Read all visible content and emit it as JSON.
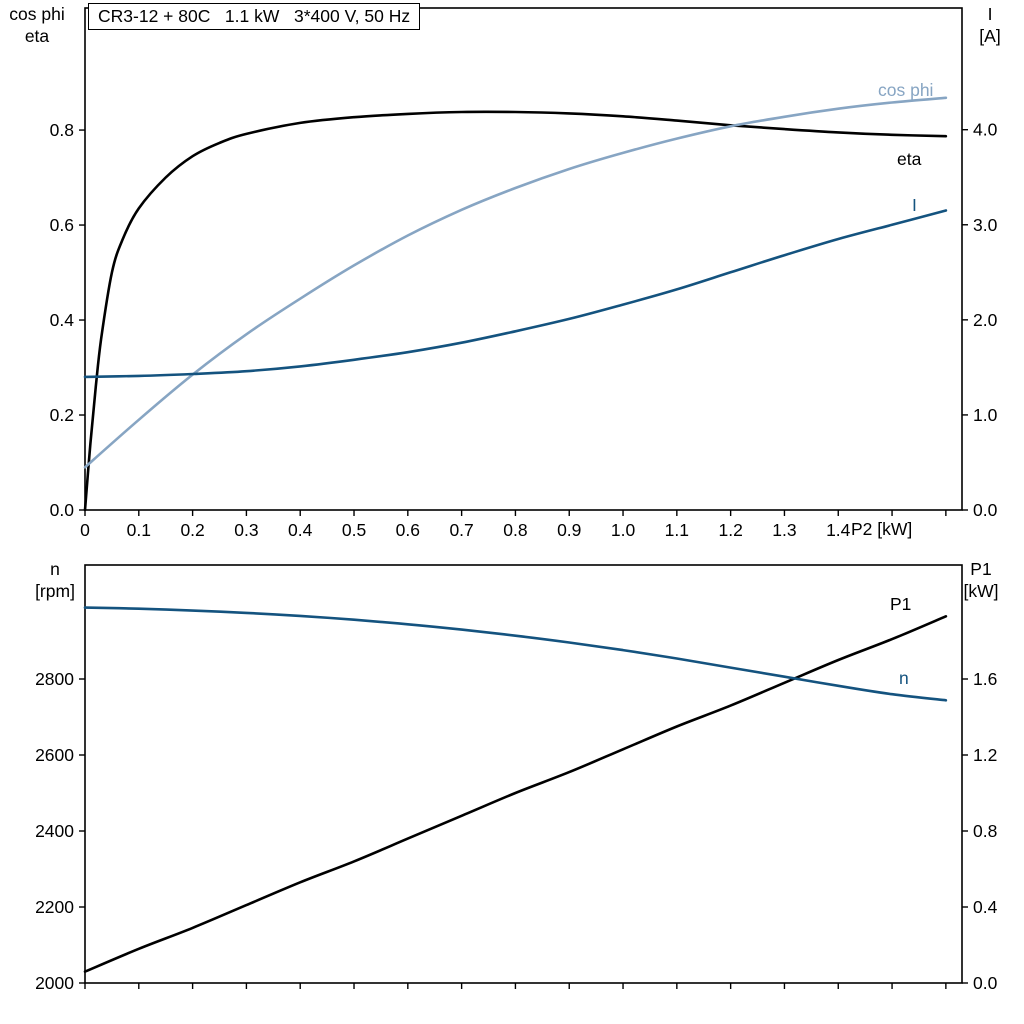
{
  "page": {
    "background": "#ffffff",
    "frame_color": "#000000",
    "color_black_curve": "#000000",
    "color_dark_blue": "#14537f",
    "color_light_blue": "#87a5c3"
  },
  "chart_data": [
    {
      "type": "line",
      "title": "CR3-12 + 80C   1.1 kW   3*400 V, 50 Hz",
      "grid": false,
      "legend_position": "curve-end-labels",
      "x_axis": {
        "label": "P2 [kW]",
        "min": 0,
        "max": 1.63,
        "tick_values": [
          0,
          0.1,
          0.2,
          0.3,
          0.4,
          0.5,
          0.6,
          0.7,
          0.8,
          0.9,
          1.0,
          1.1,
          1.2,
          1.3,
          1.4,
          1.5,
          1.6
        ],
        "tick_labels": [
          "0",
          "0.1",
          "0.2",
          "0.3",
          "0.4",
          "0.5",
          "0.6",
          "0.7",
          "0.8",
          "0.9",
          "1.0",
          "1.1",
          "1.2",
          "1.3",
          "1.4"
        ]
      },
      "y_left": {
        "header": [
          "cos phi",
          "eta"
        ],
        "min": 0,
        "max": 1.057,
        "tick_values": [
          0,
          0.2,
          0.4,
          0.6,
          0.8
        ],
        "tick_labels": [
          "0.0",
          "0.2",
          "0.4",
          "0.6",
          "0.8"
        ]
      },
      "y_right": {
        "header": [
          "I",
          "[A]"
        ],
        "min": 0,
        "max": 5.28,
        "tick_values": [
          0,
          1,
          2,
          3,
          4
        ],
        "tick_labels": [
          "0.0",
          "1.0",
          "2.0",
          "3.0",
          "4.0"
        ]
      },
      "series": [
        {
          "id": "eta",
          "label": "eta",
          "axis": "left",
          "color": "#000000",
          "x": [
            0,
            0.01,
            0.02,
            0.03,
            0.05,
            0.07,
            0.1,
            0.15,
            0.2,
            0.25,
            0.3,
            0.4,
            0.5,
            0.6,
            0.7,
            0.8,
            0.9,
            1.0,
            1.1,
            1.2,
            1.3,
            1.4,
            1.5,
            1.6
          ],
          "values": [
            0,
            0.14,
            0.26,
            0.36,
            0.5,
            0.57,
            0.635,
            0.7,
            0.745,
            0.773,
            0.792,
            0.815,
            0.827,
            0.834,
            0.838,
            0.838,
            0.835,
            0.829,
            0.82,
            0.81,
            0.802,
            0.795,
            0.79,
            0.787
          ]
        },
        {
          "id": "cos-phi",
          "label": "cos phi",
          "axis": "left",
          "color": "#87a5c3",
          "x": [
            0,
            0.1,
            0.2,
            0.3,
            0.4,
            0.5,
            0.6,
            0.7,
            0.8,
            0.9,
            1.0,
            1.1,
            1.2,
            1.3,
            1.4,
            1.5,
            1.6
          ],
          "values": [
            0.09,
            0.19,
            0.285,
            0.37,
            0.445,
            0.515,
            0.578,
            0.632,
            0.678,
            0.718,
            0.752,
            0.782,
            0.808,
            0.828,
            0.845,
            0.858,
            0.868
          ]
        },
        {
          "id": "current",
          "label": "I",
          "axis": "right",
          "color": "#14537f",
          "x": [
            0,
            0.1,
            0.2,
            0.3,
            0.4,
            0.5,
            0.6,
            0.7,
            0.8,
            0.9,
            1.0,
            1.1,
            1.2,
            1.3,
            1.4,
            1.5,
            1.6
          ],
          "values": [
            1.4,
            1.41,
            1.43,
            1.46,
            1.51,
            1.58,
            1.66,
            1.76,
            1.88,
            2.01,
            2.16,
            2.32,
            2.5,
            2.68,
            2.85,
            3.0,
            3.15
          ]
        }
      ]
    },
    {
      "type": "line",
      "title": "",
      "grid": false,
      "legend_position": "curve-end-labels",
      "x_axis": {
        "label": "",
        "min": 0,
        "max": 1.63,
        "tick_values": [
          0,
          0.1,
          0.2,
          0.3,
          0.4,
          0.5,
          0.6,
          0.7,
          0.8,
          0.9,
          1.0,
          1.1,
          1.2,
          1.3,
          1.4,
          1.5,
          1.6
        ],
        "tick_labels": []
      },
      "y_left": {
        "header": [
          "n",
          "[rpm]"
        ],
        "min": 2000,
        "max": 3100,
        "tick_values": [
          2000,
          2200,
          2400,
          2600,
          2800
        ],
        "tick_labels": [
          "2000",
          "2200",
          "2400",
          "2600",
          "2800"
        ]
      },
      "y_right": {
        "header": [
          "P1",
          "[kW]"
        ],
        "min": 0,
        "max": 2.2,
        "tick_values": [
          0,
          0.4,
          0.8,
          1.2,
          1.6
        ],
        "tick_labels": [
          "0.0",
          "0.4",
          "0.8",
          "1.2",
          "1.6"
        ]
      },
      "series": [
        {
          "id": "p1",
          "label": "P1",
          "axis": "right",
          "color": "#000000",
          "x": [
            0,
            0.1,
            0.2,
            0.3,
            0.4,
            0.5,
            0.6,
            0.7,
            0.8,
            0.9,
            1.0,
            1.1,
            1.2,
            1.3,
            1.4,
            1.5,
            1.6
          ],
          "values": [
            0.06,
            0.18,
            0.29,
            0.41,
            0.53,
            0.64,
            0.76,
            0.88,
            1.0,
            1.11,
            1.23,
            1.35,
            1.46,
            1.58,
            1.7,
            1.81,
            1.93
          ]
        },
        {
          "id": "speed",
          "label": "n",
          "axis": "left",
          "color": "#14537f",
          "x": [
            0,
            0.1,
            0.2,
            0.3,
            0.4,
            0.5,
            0.6,
            0.7,
            0.8,
            0.9,
            1.0,
            1.1,
            1.2,
            1.3,
            1.4,
            1.5,
            1.6
          ],
          "values": [
            2988,
            2985,
            2980,
            2974,
            2966,
            2956,
            2944,
            2930,
            2914,
            2896,
            2876,
            2854,
            2830,
            2806,
            2782,
            2760,
            2744
          ]
        }
      ]
    }
  ]
}
